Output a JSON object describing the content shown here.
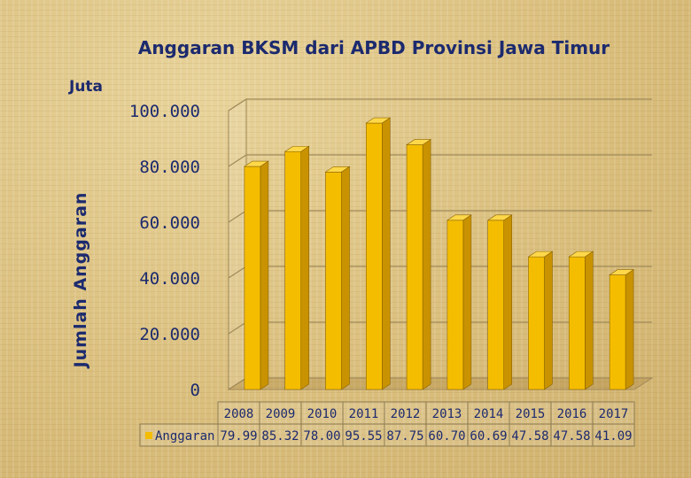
{
  "chart_data": {
    "type": "bar",
    "title": "Anggaran BKSM dari APBD Provinsi Jawa Timur",
    "unit_label": "Juta",
    "ylabel": "Jumlah Anggaran",
    "xlabel": "",
    "ylim": [
      0,
      100000
    ],
    "y_ticks": [
      0,
      20000,
      40000,
      60000,
      80000,
      100000
    ],
    "y_tick_labels": [
      "0",
      "20.000",
      "40.000",
      "60.000",
      "80.000",
      "100.000"
    ],
    "categories": [
      "2008",
      "2009",
      "2010",
      "2011",
      "2012",
      "2013",
      "2014",
      "2015",
      "2016",
      "2017"
    ],
    "series": [
      {
        "name": "Anggaran",
        "values": [
          79990,
          85320,
          78000,
          95550,
          87750,
          60700,
          60690,
          47580,
          47580,
          41090
        ],
        "table_labels": [
          "79.99",
          "85.32",
          "78.00",
          "95.55",
          "87.75",
          "60.70",
          "60.69",
          "47.58",
          "47.58",
          "41.09"
        ],
        "color": "#f2b800"
      }
    ],
    "grid": true,
    "legend": "data-table-bottom"
  },
  "colors": {
    "title": "#1c2a6e",
    "bar_front": "#f5bd00",
    "bar_side": "#c99200",
    "bar_top": "#ffd84a",
    "grid": "#a08a5a"
  }
}
